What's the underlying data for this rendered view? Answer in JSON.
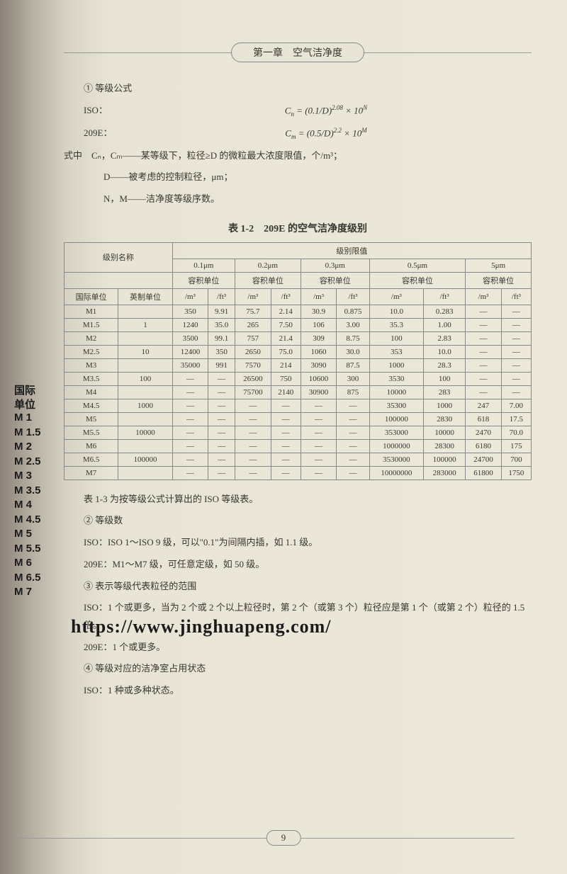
{
  "chapter": "第一章　空气洁净度",
  "sections": {
    "s1_title": "① 等级公式",
    "iso_label": "ISO：",
    "iso_formula": "Cₙ = (0.1/D)²·⁰⁸ × 10ᴺ",
    "e209_label": "209E：",
    "e209_formula": "Cₘ = (0.5/D)²·² × 10ᴹ",
    "var_line1": "式中　Cₙ，Cₘ——某等级下，粒径≥D 的微粒最大浓度限值，个/m³；",
    "var_line2": "D——被考虑的控制粒径，μm；",
    "var_line3": "N，M——洁净度等级序数。",
    "table_title": "表 1-2　209E 的空气洁净度级别",
    "after_table_1": "表 1-3 为按等级公式计算出的 ISO 等级表。",
    "s2_title": "② 等级数",
    "s2_line1": "ISO：ISO 1～ISO 9 级，可以\"0.1\"为间隔内插，如 1.1 级。",
    "s2_line2": "209E：M1～M7 级，可任意定级，如 50 级。",
    "s3_title": "③ 表示等级代表粒径的范围",
    "s3_line1": "ISO：1 个或更多，当为 2 个或 2 个以上粒径时，第 2 个（或第 3 个）粒径应是第 1 个（或第 2 个）粒径的 1.5 倍。",
    "s3_line2": "209E：1 个或更多。",
    "s4_title": "④ 等级对应的洁净室占用状态",
    "s4_line1": "ISO：1 种或多种状态。"
  },
  "row_labels_header": "国际\n单位",
  "row_labels": [
    "M 1",
    "M 1.5",
    "M 2",
    "M 2.5",
    "M 3",
    "M 3.5",
    "M 4",
    "M 4.5",
    "M 5",
    "M 5.5",
    "M 6",
    "M 6.5",
    "M 7"
  ],
  "table": {
    "header_top": "级别限值",
    "name_header": "级别名称",
    "size_headers": [
      "0.1μm",
      "0.2μm",
      "0.3μm",
      "0.5μm",
      "5μm"
    ],
    "vol_unit": "容积单位",
    "col_intl": "国际单位",
    "col_eng": "英制单位",
    "unit_m3": "/m³",
    "unit_ft3": "/ft³",
    "rows": [
      {
        "intl": "M1",
        "eng": "",
        "d": [
          "350",
          "9.91",
          "75.7",
          "2.14",
          "30.9",
          "0.875",
          "10.0",
          "0.283",
          "—",
          "—"
        ]
      },
      {
        "intl": "M1.5",
        "eng": "1",
        "d": [
          "1240",
          "35.0",
          "265",
          "7.50",
          "106",
          "3.00",
          "35.3",
          "1.00",
          "—",
          "—"
        ]
      },
      {
        "intl": "M2",
        "eng": "",
        "d": [
          "3500",
          "99.1",
          "757",
          "21.4",
          "309",
          "8.75",
          "100",
          "2.83",
          "—",
          "—"
        ]
      },
      {
        "intl": "M2.5",
        "eng": "10",
        "d": [
          "12400",
          "350",
          "2650",
          "75.0",
          "1060",
          "30.0",
          "353",
          "10.0",
          "—",
          "—"
        ]
      },
      {
        "intl": "M3",
        "eng": "",
        "d": [
          "35000",
          "991",
          "7570",
          "214",
          "3090",
          "87.5",
          "1000",
          "28.3",
          "—",
          "—"
        ]
      },
      {
        "intl": "M3.5",
        "eng": "100",
        "d": [
          "—",
          "—",
          "26500",
          "750",
          "10600",
          "300",
          "3530",
          "100",
          "—",
          "—"
        ]
      },
      {
        "intl": "M4",
        "eng": "",
        "d": [
          "—",
          "—",
          "75700",
          "2140",
          "30900",
          "875",
          "10000",
          "283",
          "—",
          "—"
        ]
      },
      {
        "intl": "M4.5",
        "eng": "1000",
        "d": [
          "—",
          "—",
          "—",
          "—",
          "—",
          "—",
          "35300",
          "1000",
          "247",
          "7.00"
        ]
      },
      {
        "intl": "M5",
        "eng": "",
        "d": [
          "—",
          "—",
          "—",
          "—",
          "—",
          "—",
          "100000",
          "2830",
          "618",
          "17.5"
        ]
      },
      {
        "intl": "M5.5",
        "eng": "10000",
        "d": [
          "—",
          "—",
          "—",
          "—",
          "—",
          "—",
          "353000",
          "10000",
          "2470",
          "70.0"
        ]
      },
      {
        "intl": "M6",
        "eng": "",
        "d": [
          "—",
          "—",
          "—",
          "—",
          "—",
          "—",
          "1000000",
          "28300",
          "6180",
          "175"
        ]
      },
      {
        "intl": "M6.5",
        "eng": "100000",
        "d": [
          "—",
          "—",
          "—",
          "—",
          "—",
          "—",
          "3530000",
          "100000",
          "24700",
          "700"
        ]
      },
      {
        "intl": "M7",
        "eng": "",
        "d": [
          "—",
          "—",
          "—",
          "—",
          "—",
          "—",
          "10000000",
          "283000",
          "61800",
          "1750"
        ]
      }
    ]
  },
  "watermark": "https://www.jinghuapeng.com/",
  "page_number": "9",
  "colors": {
    "text": "#3a3630",
    "border": "#888888",
    "overlay_text": "#1a1a1a"
  }
}
